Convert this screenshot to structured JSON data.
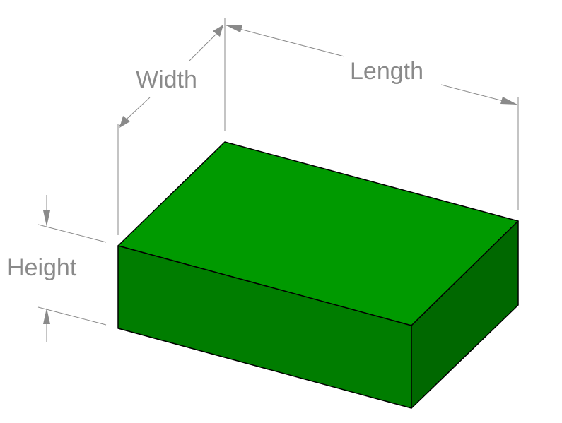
{
  "diagram": {
    "labels": {
      "width": "Width",
      "length": "Length",
      "height": "Height"
    },
    "colors": {
      "top_face": "#009a00",
      "front_face": "#007d00",
      "side_face": "#006800",
      "dimension": "#8a8a8a",
      "edge": "#000000"
    }
  }
}
